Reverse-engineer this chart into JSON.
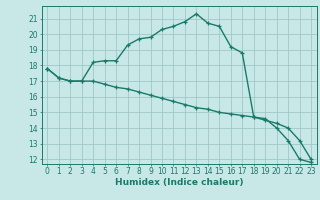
{
  "title": "",
  "xlabel": "Humidex (Indice chaleur)",
  "ylabel": "",
  "bg_color": "#c8e8e8",
  "line_color": "#1a7a6a",
  "grid_color": "#a0c8c8",
  "xlim": [
    -0.5,
    23.5
  ],
  "ylim": [
    11.7,
    21.8
  ],
  "yticks": [
    12,
    13,
    14,
    15,
    16,
    17,
    18,
    19,
    20,
    21
  ],
  "xticks": [
    0,
    1,
    2,
    3,
    4,
    5,
    6,
    7,
    8,
    9,
    10,
    11,
    12,
    13,
    14,
    15,
    16,
    17,
    18,
    19,
    20,
    21,
    22,
    23
  ],
  "curve1_x": [
    0,
    1,
    2,
    3,
    4,
    5,
    6,
    7,
    8,
    9,
    10,
    11,
    12,
    13,
    14,
    15,
    16,
    17,
    18,
    19,
    20,
    21,
    22,
    23
  ],
  "curve1_y": [
    17.8,
    17.2,
    17.0,
    17.0,
    18.2,
    18.3,
    18.3,
    19.3,
    19.7,
    19.8,
    20.3,
    20.5,
    20.8,
    21.3,
    20.7,
    20.5,
    19.2,
    18.8,
    14.7,
    14.6,
    14.0,
    13.2,
    12.0,
    11.8
  ],
  "curve2_x": [
    0,
    1,
    2,
    3,
    4,
    5,
    6,
    7,
    8,
    9,
    10,
    11,
    12,
    13,
    14,
    15,
    16,
    17,
    18,
    19,
    20,
    21,
    22,
    23
  ],
  "curve2_y": [
    17.8,
    17.2,
    17.0,
    17.0,
    17.0,
    16.8,
    16.6,
    16.5,
    16.3,
    16.1,
    15.9,
    15.7,
    15.5,
    15.3,
    15.2,
    15.0,
    14.9,
    14.8,
    14.7,
    14.5,
    14.3,
    14.0,
    13.2,
    12.0
  ],
  "tick_fontsize": 5.5,
  "xlabel_fontsize": 6.5,
  "marker_size": 3.5,
  "line_width": 1.0
}
